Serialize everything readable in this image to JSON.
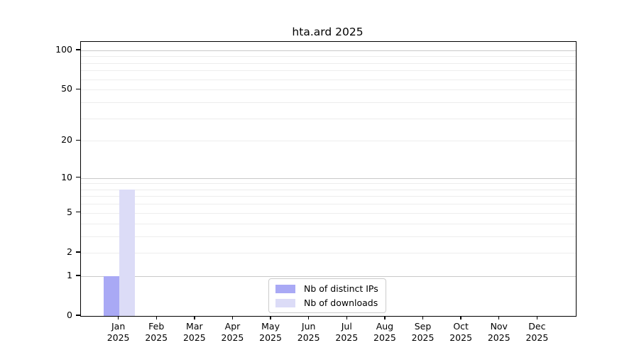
{
  "chart_data": {
    "type": "bar",
    "title": "hta.ard 2025",
    "categories": [
      "Jan",
      "Feb",
      "Mar",
      "Apr",
      "May",
      "Jun",
      "Jul",
      "Aug",
      "Sep",
      "Oct",
      "Nov",
      "Dec"
    ],
    "category_year": "2025",
    "series": [
      {
        "name": "Nb of distinct IPs",
        "color": "#a9a9f5",
        "values": [
          1,
          0,
          0,
          0,
          0,
          0,
          0,
          0,
          0,
          0,
          0,
          0
        ]
      },
      {
        "name": "Nb of downloads",
        "color": "#dcdcf7",
        "values": [
          8,
          0,
          0,
          0,
          0,
          0,
          0,
          0,
          0,
          0,
          0,
          0
        ]
      }
    ],
    "y_axis": {
      "scale": "log1p",
      "tick_values": [
        0,
        1,
        2,
        5,
        10,
        20,
        50,
        100
      ],
      "major_gridlines": [
        1,
        10,
        100
      ],
      "minor_gridlines": [
        2,
        3,
        4,
        5,
        6,
        7,
        8,
        9,
        20,
        30,
        40,
        50,
        60,
        70,
        80,
        90
      ],
      "min": 0,
      "max": 116
    },
    "legend": {
      "position": "lower-center-inside"
    },
    "grid": true,
    "background": "#ffffff",
    "text_color": "#000000"
  }
}
